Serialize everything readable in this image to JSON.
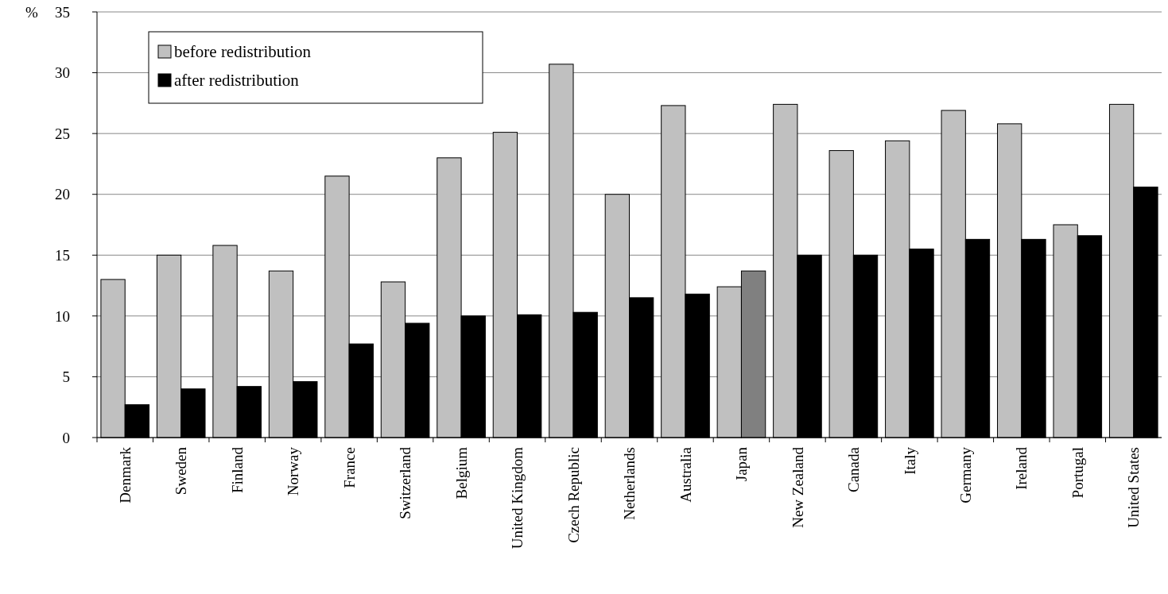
{
  "chart_data": {
    "type": "bar",
    "ylabel": "%",
    "categories": [
      "Denmark",
      "Sweden",
      "Finland",
      "Norway",
      "France",
      "Switzerland",
      "Belgium",
      "United Kingdom",
      "Czech Republic",
      "Netherlands",
      "Australia",
      "Japan",
      "New Zealand",
      "Canada",
      "Italy",
      "Germany",
      "Ireland",
      "Portugal",
      "United States"
    ],
    "series": [
      {
        "name": "before redistribution",
        "color": "#c0c0c0",
        "values": [
          13.0,
          15.0,
          15.8,
          13.7,
          21.5,
          12.8,
          23.0,
          25.1,
          30.7,
          20.0,
          27.3,
          12.4,
          27.4,
          23.6,
          24.4,
          26.9,
          25.8,
          17.5,
          27.4
        ]
      },
      {
        "name": "after redistribution",
        "color": "#000000",
        "colors": [
          "#000000",
          "#000000",
          "#000000",
          "#000000",
          "#000000",
          "#000000",
          "#000000",
          "#000000",
          "#000000",
          "#000000",
          "#000000",
          "#808080",
          "#000000",
          "#000000",
          "#000000",
          "#000000",
          "#000000",
          "#000000",
          "#000000"
        ],
        "values": [
          2.7,
          4.0,
          4.2,
          4.6,
          7.7,
          9.4,
          10.0,
          10.1,
          10.3,
          11.5,
          11.8,
          13.7,
          15.0,
          15.0,
          15.5,
          16.3,
          16.3,
          16.6,
          20.6
        ]
      }
    ],
    "ylim": [
      0,
      35
    ],
    "yticks": [
      0,
      5,
      10,
      15,
      20,
      25,
      30,
      35
    ],
    "grid": "y",
    "legend": "top left"
  }
}
